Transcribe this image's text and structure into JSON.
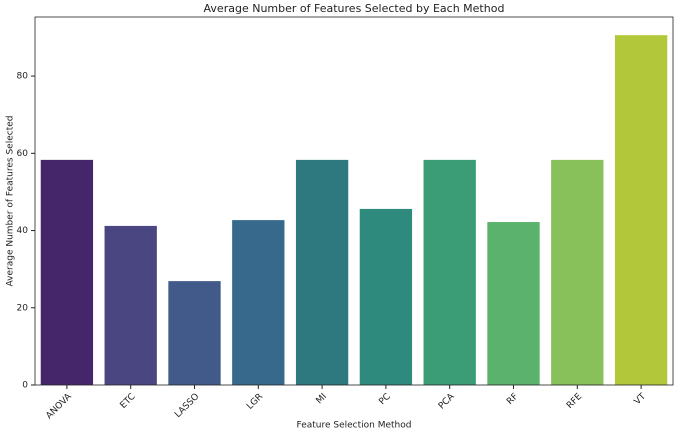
{
  "chart_data": {
    "type": "bar",
    "title": "Average Number of Features Selected by Each Method",
    "x_label": "Feature Selection Method",
    "y_label": "Average Number of Features Selected",
    "categories": [
      "ANOVA",
      "ETC",
      "LASSO",
      "LGR",
      "MI",
      "PC",
      "PCA",
      "RF",
      "RFE",
      "VT"
    ],
    "values": [
      58.3,
      41.2,
      26.9,
      42.7,
      58.3,
      45.6,
      58.3,
      42.2,
      58.3,
      90.6
    ],
    "colors": [
      "#46266b",
      "#4a4682",
      "#415a8a",
      "#36698c",
      "#2e7880",
      "#2e8a7c",
      "#3a9d76",
      "#5ab26c",
      "#88c05a",
      "#b2c83a"
    ],
    "ylim": [
      0,
      95.3
    ],
    "yticks": [
      0,
      20,
      40,
      60,
      80
    ],
    "grid": false
  }
}
